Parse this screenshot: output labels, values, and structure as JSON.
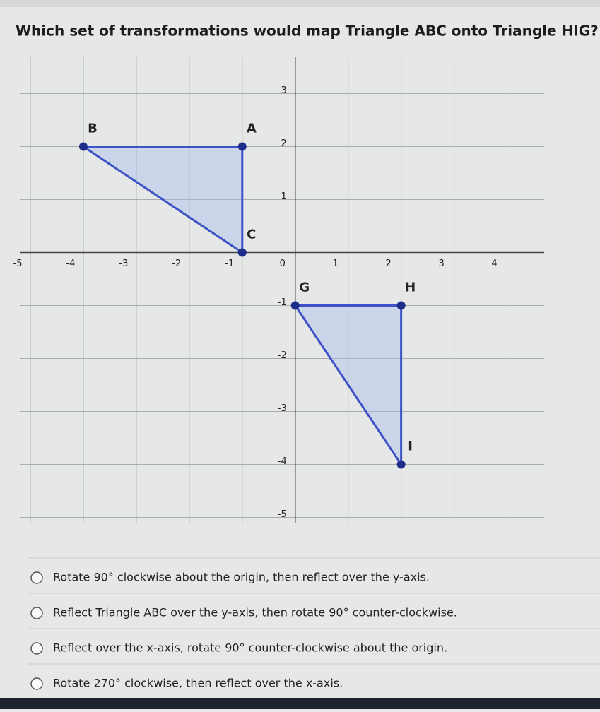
{
  "question": "Which set of transformations would map Triangle ABC onto Triangle HIG?",
  "graph": {
    "xlim": [
      -5.2,
      4.7
    ],
    "ylim": [
      -5.1,
      3.7
    ],
    "xticks": [
      -5,
      -4,
      -3,
      -2,
      -1,
      0,
      1,
      2,
      3,
      4
    ],
    "yticks": [
      -5,
      -4,
      -3,
      -2,
      -1,
      1,
      2,
      3
    ],
    "grid": true,
    "triangles": [
      {
        "labels": [
          "A",
          "B",
          "C"
        ],
        "x": [
          -1,
          -4,
          -1
        ],
        "y": [
          2,
          2,
          0
        ]
      },
      {
        "labels": [
          "G",
          "H",
          "I"
        ],
        "x": [
          0,
          2,
          2
        ],
        "y": [
          -1,
          -1,
          -4
        ]
      }
    ]
  },
  "options": [
    "Rotate 90° clockwise about the origin, then reflect over the y-axis.",
    "Reflect Triangle ABC over the y-axis, then rotate 90° counter-clockwise.",
    "Reflect over the x-axis, rotate 90° counter-clockwise about the origin.",
    "Rotate 270° clockwise, then reflect over the x-axis."
  ]
}
